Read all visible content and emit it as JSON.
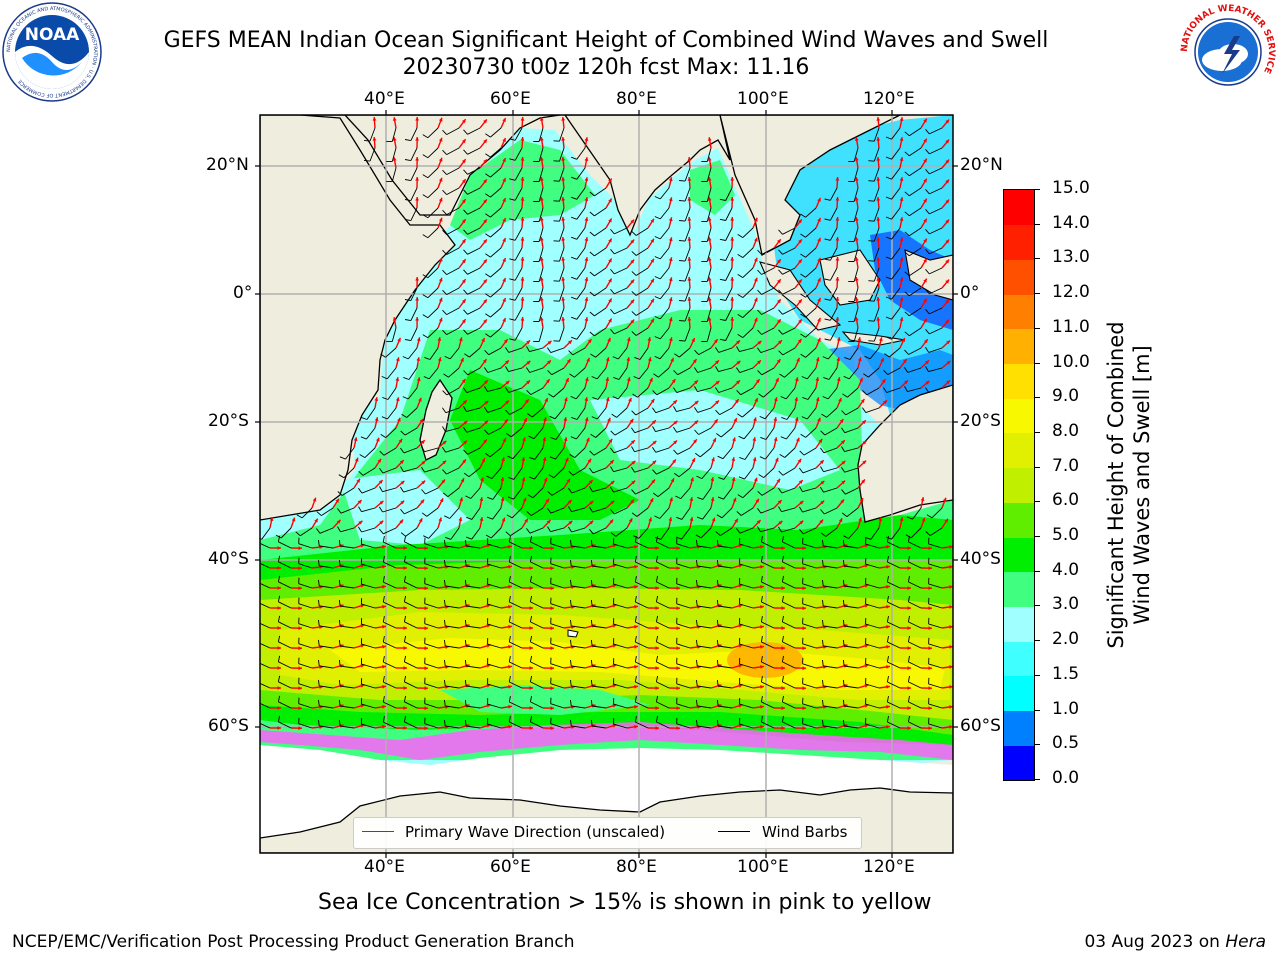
{
  "title": {
    "line1": "GEFS MEAN Indian Ocean Significant Height of Combined Wind Waves and Swell",
    "line2": "20230730 t00z 120h fcst   Max: 11.16"
  },
  "logos": {
    "noaa_text": "NOAA",
    "noaa_ring": "NATIONAL OCEANIC AND ATMOSPHERIC ADMINISTRATION · U.S. DEPARTMENT OF COMMERCE",
    "nws_ring": "NATIONAL WEATHER SERVICE"
  },
  "map": {
    "lon_labels": [
      "40°E",
      "60°E",
      "80°E",
      "100°E",
      "120°E"
    ],
    "lat_labels": [
      "20°N",
      "0°",
      "20°S",
      "40°S",
      "60°S"
    ],
    "ice_note": "Sea Ice Concentration > 15% is shown in pink to yellow"
  },
  "legend": {
    "wave_label": "Primary Wave Direction (unscaled)",
    "barb_label": "Wind Barbs",
    "wave_color": "#ff0000",
    "barb_color": "#000000"
  },
  "colorbar": {
    "title_line1": "Significant Height of Combined",
    "title_line2": "Wind Waves and Swell [m]",
    "ticks": [
      "0.0",
      "0.5",
      "1.0",
      "1.5",
      "2.0",
      "3.0",
      "4.0",
      "5.0",
      "6.0",
      "7.0",
      "8.0",
      "9.0",
      "10.0",
      "11.0",
      "12.0",
      "13.0",
      "14.0",
      "15.0"
    ],
    "colors": [
      "#0000ff",
      "#0080ff",
      "#00ffff",
      "#40ffff",
      "#a0ffff",
      "#40ff80",
      "#00ee00",
      "#60ee00",
      "#c0f000",
      "#e0f000",
      "#f8f800",
      "#ffe000",
      "#ffb000",
      "#ff8000",
      "#ff5000",
      "#ff2000",
      "#ff0000"
    ]
  },
  "footer": {
    "left": "NCEP/EMC/Verification Post Processing Product Generation Branch",
    "date": "03 Aug 2023 on ",
    "host": "Hera"
  }
}
